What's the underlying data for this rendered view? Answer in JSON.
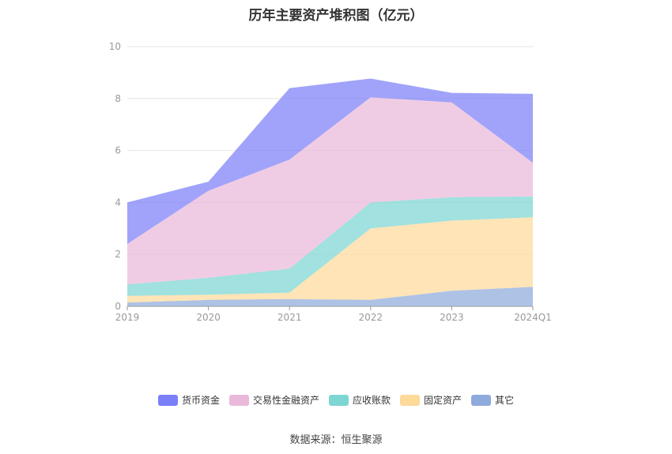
{
  "title": "历年主要资产堆积图（亿元）",
  "source": "数据来源：恒生聚源",
  "chart_data": {
    "type": "area",
    "stacked": true,
    "title": "历年主要资产堆积图（亿元）",
    "x": [
      "2019",
      "2020",
      "2021",
      "2022",
      "2023",
      "2024Q1"
    ],
    "ylim": [
      0,
      10
    ],
    "yticks": [
      0,
      2,
      4,
      6,
      8,
      10
    ],
    "grid": true,
    "legend_position": "bottom",
    "series": [
      {
        "name": "其它",
        "color": "#8faadc",
        "values": [
          0.15,
          0.25,
          0.28,
          0.25,
          0.6,
          0.75
        ]
      },
      {
        "name": "固定资产",
        "color": "#fdd99a",
        "values": [
          0.25,
          0.2,
          0.25,
          2.75,
          2.7,
          2.68
        ]
      },
      {
        "name": "应收账款",
        "color": "#7dd6d2",
        "values": [
          0.45,
          0.65,
          0.92,
          1.0,
          0.9,
          0.8
        ]
      },
      {
        "name": "交易性金融资产",
        "color": "#eab9da",
        "values": [
          1.55,
          3.35,
          4.2,
          4.05,
          3.65,
          1.3
        ]
      },
      {
        "name": "货币资金",
        "color": "#7b7ff7",
        "values": [
          1.6,
          0.35,
          2.75,
          0.72,
          0.37,
          2.65
        ]
      }
    ],
    "legend_order": [
      "货币资金",
      "交易性金融资产",
      "应收账款",
      "固定资产",
      "其它"
    ]
  }
}
